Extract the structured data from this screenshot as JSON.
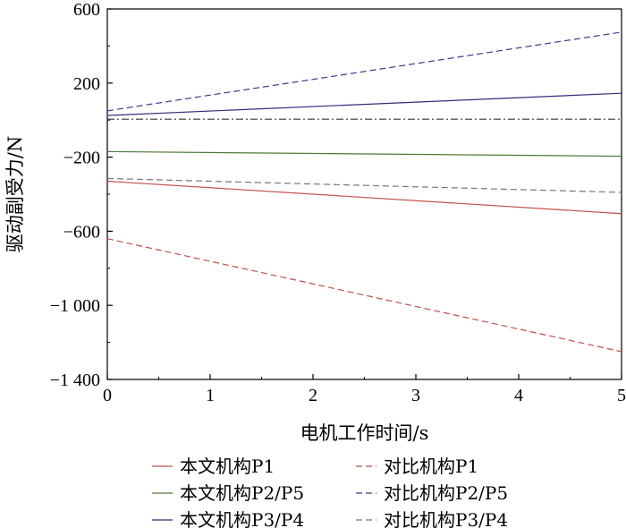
{
  "chart_data": {
    "type": "line",
    "title": "",
    "xlabel": "电机工作时间/s",
    "ylabel": "驱动副受力/N",
    "xlim": [
      0,
      5
    ],
    "ylim": [
      -1400,
      600
    ],
    "xticks": [
      0,
      1,
      2,
      3,
      4,
      5
    ],
    "xtick_labels": [
      "0",
      "1",
      "2",
      "3",
      "4",
      "5"
    ],
    "yticks": [
      600,
      200,
      -200,
      -600,
      -1000,
      -1400
    ],
    "ytick_labels": [
      "600",
      "200",
      "−200",
      "−600",
      "−1 000",
      "−1 400"
    ],
    "grid": false,
    "legend_position": "bottom",
    "series": [
      {
        "name": "本文机构P1",
        "color": "#c0504d",
        "dash": "solid",
        "x": [
          0,
          5
        ],
        "y": [
          -330,
          -505
        ]
      },
      {
        "name": "对比机构P1",
        "color": "#c0504d",
        "dash": "dashed",
        "x": [
          0,
          5
        ],
        "y": [
          -640,
          -1250
        ]
      },
      {
        "name": "本文机构P2/P5",
        "color": "#4f7a3a",
        "dash": "solid",
        "x": [
          0,
          5
        ],
        "y": [
          -170,
          -195
        ]
      },
      {
        "name": "对比机构P2/P5",
        "color": "#3b3b8f",
        "dash": "dashed",
        "x": [
          0,
          5
        ],
        "y": [
          50,
          475
        ]
      },
      {
        "name": "本文机构P3/P4",
        "color": "#2e2e7a",
        "dash": "solid",
        "x": [
          0,
          5
        ],
        "y": [
          25,
          145
        ]
      },
      {
        "name": "对比机构P3/P4",
        "color": "#777777",
        "dash": "dashed",
        "x": [
          0,
          5
        ],
        "y": [
          -315,
          -390
        ]
      },
      {
        "name": "",
        "color": "#333333",
        "dash": "dashdot",
        "x": [
          0,
          5
        ],
        "y": [
          5,
          5
        ]
      }
    ]
  }
}
